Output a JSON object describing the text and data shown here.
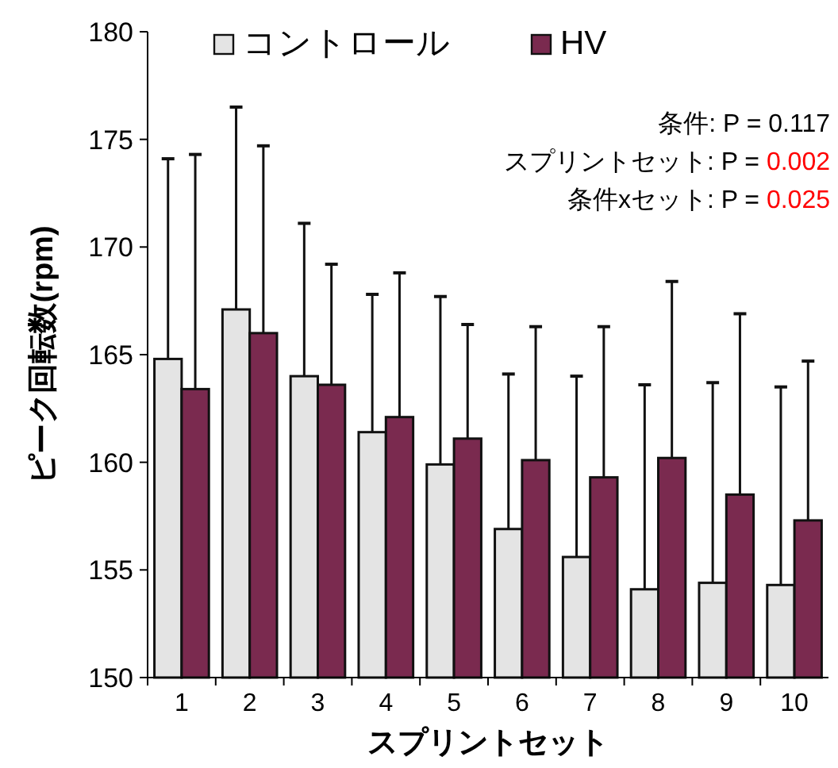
{
  "chart_data": {
    "type": "bar",
    "xlabel": "スプリントセット",
    "ylabel": "ピーク回転数(rpm)",
    "categories": [
      "1",
      "2",
      "3",
      "4",
      "5",
      "6",
      "7",
      "8",
      "9",
      "10"
    ],
    "series": [
      {
        "name": "コントロール",
        "color": "#e4e4e4",
        "values": [
          164.8,
          167.1,
          164.0,
          161.4,
          159.9,
          156.9,
          155.6,
          154.1,
          154.4,
          154.3
        ],
        "errors": [
          [
            164.8,
            174.1
          ],
          [
            167.1,
            176.5
          ],
          [
            164.0,
            171.1
          ],
          [
            161.4,
            167.8
          ],
          [
            159.9,
            167.7
          ],
          [
            156.9,
            164.1
          ],
          [
            155.6,
            164.0
          ],
          [
            154.1,
            163.6
          ],
          [
            154.4,
            163.7
          ],
          [
            154.3,
            163.5
          ]
        ]
      },
      {
        "name": "HV",
        "color": "#7a2a4f",
        "values": [
          163.4,
          166.0,
          163.6,
          162.1,
          161.1,
          160.1,
          159.3,
          160.2,
          158.5,
          157.3
        ],
        "errors": [
          [
            163.4,
            174.3
          ],
          [
            166.0,
            174.7
          ],
          [
            163.6,
            169.2
          ],
          [
            162.1,
            168.8
          ],
          [
            161.1,
            166.4
          ],
          [
            160.1,
            166.3
          ],
          [
            159.3,
            166.3
          ],
          [
            160.2,
            168.4
          ],
          [
            158.5,
            166.9
          ],
          [
            157.3,
            164.7
          ]
        ]
      }
    ],
    "ylim": [
      150,
      180
    ],
    "yticks": [
      150,
      155,
      160,
      165,
      170,
      175,
      180
    ],
    "grid": false,
    "legend": "top",
    "annotations": [
      "条件: P = 0.117",
      "スプリントセット: P = 0.002",
      "条件xセット: P = 0.025"
    ]
  }
}
